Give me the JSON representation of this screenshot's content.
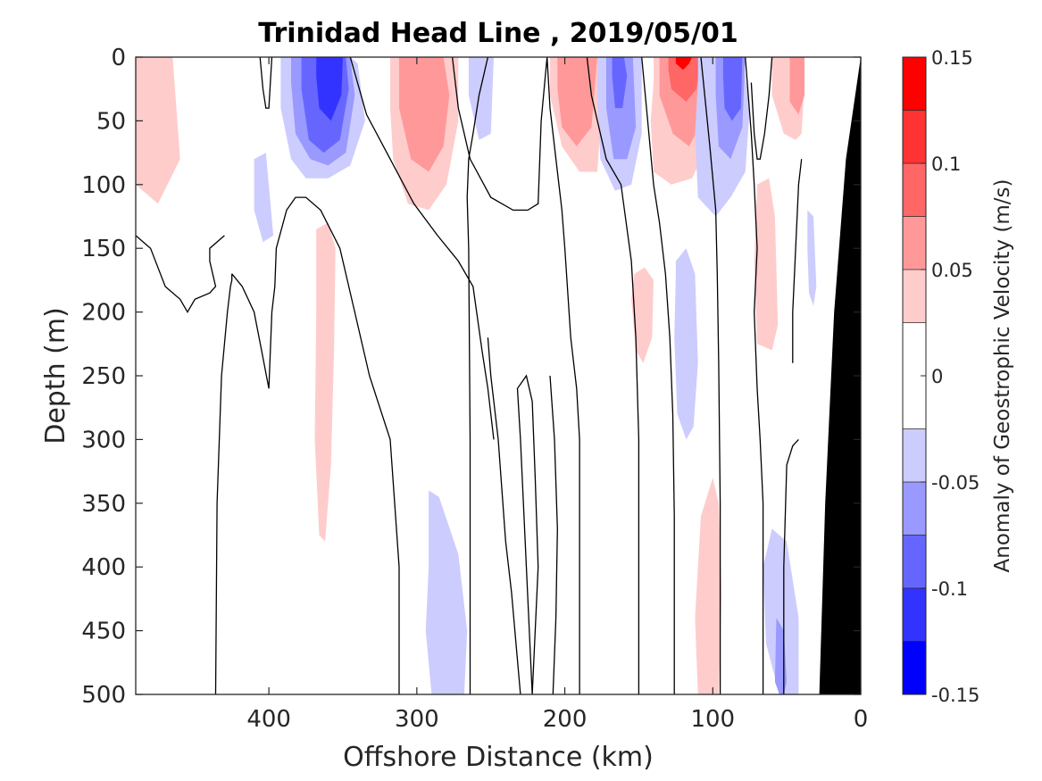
{
  "chart_data": {
    "type": "contour",
    "title": "Trinidad Head Line , 2019/05/01",
    "xlabel": "Offshore Distance (km)",
    "ylabel": "Depth (m)",
    "colorbar_label": "Anomaly of Geostrophic Velocity (m/s)",
    "xlim": [
      490,
      0
    ],
    "ylim": [
      0,
      500
    ],
    "x_reversed": true,
    "y_reversed": true,
    "x_ticks": [
      "400",
      "300",
      "200",
      "100",
      "0"
    ],
    "x_tick_values": [
      400,
      300,
      200,
      100,
      0
    ],
    "y_ticks": [
      "0",
      "50",
      "100",
      "150",
      "200",
      "250",
      "300",
      "350",
      "400",
      "450",
      "500"
    ],
    "y_tick_values": [
      0,
      50,
      100,
      150,
      200,
      250,
      300,
      350,
      400,
      450,
      500
    ],
    "colorbar": {
      "levels": [
        -0.15,
        -0.125,
        -0.1,
        -0.075,
        -0.05,
        -0.025,
        0.025,
        0.05,
        0.075,
        0.1,
        0.125,
        0.15
      ],
      "tick_labels": [
        "-0.15",
        "-0.1",
        "-0.05",
        "0",
        "0.05",
        "0.1",
        "0.15"
      ],
      "tick_values": [
        -0.15,
        -0.1,
        -0.05,
        0,
        0.05,
        0.1,
        0.15
      ],
      "colors": [
        "#0000ff",
        "#3333ff",
        "#6666ff",
        "#9999ff",
        "#ccccff",
        "#ffffff",
        "#ffcccc",
        "#ff9999",
        "#ff6666",
        "#ff3333",
        "#ff0000"
      ]
    },
    "colors": {
      "bathymetry": "#000000",
      "contour_line": "#000000"
    },
    "regions": [
      {
        "x": [
          490,
          465,
          460,
          475,
          490
        ],
        "y": [
          0,
          0,
          80,
          115,
          100
        ],
        "value": 0.03
      },
      {
        "x": [
          410,
          402,
          397,
          404,
          410
        ],
        "y": [
          80,
          75,
          140,
          145,
          120
        ],
        "value": -0.03
      },
      {
        "x": [
          392,
          380,
          370,
          355,
          345,
          340,
          335,
          345,
          360,
          375,
          385,
          392
        ],
        "y": [
          0,
          0,
          0,
          0,
          0,
          5,
          50,
          85,
          95,
          95,
          80,
          40
        ],
        "value": -0.03
      },
      {
        "x": [
          385,
          375,
          365,
          355,
          345,
          342,
          348,
          360,
          372,
          382,
          385
        ],
        "y": [
          0,
          0,
          0,
          0,
          0,
          30,
          75,
          85,
          80,
          60,
          20
        ],
        "value": -0.06
      },
      {
        "x": [
          378,
          368,
          358,
          348,
          346,
          352,
          363,
          373,
          378
        ],
        "y": [
          0,
          0,
          0,
          0,
          25,
          65,
          75,
          65,
          25
        ],
        "value": -0.08
      },
      {
        "x": [
          368,
          358,
          350,
          351,
          358,
          366,
          368
        ],
        "y": [
          0,
          0,
          0,
          30,
          50,
          40,
          15
        ],
        "value": -0.105
      },
      {
        "x": [
          368,
          360,
          355,
          356,
          358,
          362,
          366,
          369,
          368
        ],
        "y": [
          135,
          130,
          150,
          230,
          320,
          380,
          375,
          300,
          200
        ],
        "value": 0.03
      },
      {
        "x": [
          318,
          305,
          295,
          280,
          272,
          272,
          280,
          292,
          306,
          316,
          318
        ],
        "y": [
          0,
          0,
          0,
          0,
          0,
          50,
          100,
          120,
          115,
          80,
          40
        ],
        "value": 0.03
      },
      {
        "x": [
          312,
          300,
          290,
          282,
          278,
          282,
          292,
          304,
          312
        ],
        "y": [
          0,
          0,
          0,
          0,
          30,
          70,
          90,
          80,
          40
        ],
        "value": 0.06
      },
      {
        "x": [
          265,
          255,
          248,
          250,
          258,
          265
        ],
        "y": [
          0,
          0,
          0,
          60,
          65,
          30
        ],
        "value": -0.03
      },
      {
        "x": [
          292,
          285,
          272,
          266,
          268,
          278,
          290,
          294,
          292
        ],
        "y": [
          340,
          345,
          390,
          450,
          500,
          500,
          500,
          450,
          400
        ],
        "value": -0.03
      },
      {
        "x": [
          210,
          200,
          190,
          178,
          175,
          178,
          190,
          202,
          210
        ],
        "y": [
          0,
          0,
          0,
          0,
          40,
          90,
          90,
          70,
          30
        ],
        "value": 0.03
      },
      {
        "x": [
          205,
          195,
          185,
          178,
          182,
          192,
          202,
          205
        ],
        "y": [
          0,
          0,
          0,
          0,
          55,
          70,
          55,
          25
        ],
        "value": 0.06
      },
      {
        "x": [
          178,
          165,
          155,
          148,
          148,
          155,
          166,
          176,
          178
        ],
        "y": [
          0,
          0,
          0,
          0,
          60,
          100,
          105,
          80,
          30
        ],
        "value": -0.03
      },
      {
        "x": [
          172,
          162,
          154,
          152,
          158,
          167,
          172
        ],
        "y": [
          0,
          0,
          0,
          55,
          80,
          80,
          40
        ],
        "value": -0.06
      },
      {
        "x": [
          168,
          160,
          158,
          161,
          166,
          168
        ],
        "y": [
          0,
          0,
          15,
          40,
          40,
          15
        ],
        "value": -0.09
      },
      {
        "x": [
          140,
          128,
          118,
          106,
          100,
          104,
          114,
          128,
          140,
          142,
          140
        ],
        "y": [
          0,
          0,
          0,
          0,
          30,
          70,
          95,
          100,
          90,
          50,
          20
        ],
        "value": 0.03
      },
      {
        "x": [
          136,
          125,
          115,
          106,
          107,
          116,
          127,
          136
        ],
        "y": [
          0,
          0,
          0,
          0,
          50,
          70,
          60,
          30
        ],
        "value": 0.06
      },
      {
        "x": [
          130,
          122,
          113,
          108,
          111,
          118,
          128,
          130
        ],
        "y": [
          0,
          0,
          0,
          0,
          25,
          35,
          25,
          10
        ],
        "value": 0.09
      },
      {
        "x": [
          125,
          120,
          114,
          116,
          120,
          125
        ],
        "y": [
          0,
          0,
          0,
          5,
          10,
          5
        ],
        "value": 0.13
      },
      {
        "x": [
          153,
          146,
          140,
          141,
          147,
          152,
          155,
          153
        ],
        "y": [
          170,
          165,
          175,
          220,
          240,
          230,
          190,
          170
        ],
        "value": 0.03
      },
      {
        "x": [
          110,
          100,
          90,
          80,
          75,
          78,
          88,
          98,
          110,
          112,
          110
        ],
        "y": [
          0,
          0,
          0,
          0,
          40,
          90,
          110,
          125,
          110,
          60,
          20
        ],
        "value": -0.03
      },
      {
        "x": [
          98,
          90,
          82,
          78,
          80,
          88,
          96,
          98
        ],
        "y": [
          0,
          0,
          0,
          0,
          55,
          80,
          70,
          30
        ],
        "value": -0.06
      },
      {
        "x": [
          93,
          86,
          80,
          81,
          87,
          92,
          93
        ],
        "y": [
          0,
          0,
          0,
          40,
          50,
          40,
          15
        ],
        "value": -0.09
      },
      {
        "x": [
          125,
          118,
          112,
          110,
          113,
          118,
          124,
          126,
          125
        ],
        "y": [
          160,
          150,
          170,
          240,
          290,
          300,
          280,
          220,
          170
        ],
        "value": -0.03
      },
      {
        "x": [
          100,
          96,
          94,
          96,
          102,
          110,
          112,
          108,
          100
        ],
        "y": [
          330,
          350,
          420,
          500,
          500,
          500,
          440,
          360,
          330
        ],
        "value": 0.03
      },
      {
        "x": [
          70,
          62,
          58,
          56,
          60,
          70,
          72,
          70
        ],
        "y": [
          100,
          95,
          125,
          210,
          230,
          225,
          160,
          100
        ],
        "value": 0.03
      },
      {
        "x": [
          60,
          52,
          45,
          40,
          38,
          40,
          44,
          52,
          60
        ],
        "y": [
          0,
          0,
          0,
          0,
          20,
          60,
          65,
          60,
          30
        ],
        "value": 0.03
      },
      {
        "x": [
          48,
          42,
          38,
          38,
          42,
          48
        ],
        "y": [
          0,
          0,
          0,
          30,
          45,
          35
        ],
        "value": 0.06
      },
      {
        "x": [
          36,
          32,
          30,
          32,
          35,
          36
        ],
        "y": [
          120,
          125,
          180,
          195,
          185,
          150
        ],
        "value": -0.03
      },
      {
        "x": [
          60,
          50,
          42,
          42,
          45,
          55,
          64,
          66,
          60
        ],
        "y": [
          370,
          380,
          440,
          500,
          500,
          500,
          460,
          400,
          370
        ],
        "value": -0.03
      },
      {
        "x": [
          57,
          52,
          50,
          52,
          55,
          58,
          57
        ],
        "y": [
          440,
          450,
          490,
          500,
          500,
          490,
          440
        ],
        "value": -0.06
      }
    ],
    "zero_contours": [
      {
        "x": [
          490,
          480,
          470,
          460,
          455,
          450,
          440,
          436,
          440,
          440,
          430
        ],
        "y": [
          140,
          150,
          180,
          190,
          200,
          190,
          185,
          180,
          160,
          150,
          140
        ]
      },
      {
        "x": [
          436,
          435,
          432,
          428,
          426,
          425,
          425
        ],
        "y": [
          500,
          350,
          250,
          200,
          180,
          175,
          170
        ]
      },
      {
        "x": [
          425,
          418,
          410,
          405,
          400,
          398,
          396,
          395,
          388,
          382,
          375,
          365,
          352,
          342,
          332,
          318,
          312,
          312
        ],
        "y": [
          170,
          180,
          200,
          230,
          260,
          200,
          180,
          150,
          120,
          110,
          110,
          120,
          150,
          200,
          250,
          300,
          400,
          500
        ]
      },
      {
        "x": [
          406,
          404,
          402,
          400,
          398
        ],
        "y": [
          0,
          25,
          40,
          40,
          0
        ]
      },
      {
        "x": [
          252,
          258,
          262,
          265,
          266,
          265,
          264,
          264
        ],
        "y": [
          0,
          30,
          60,
          80,
          110,
          150,
          300,
          500
        ]
      },
      {
        "x": [
          345,
          334,
          318,
          302,
          286,
          272,
          262,
          256,
          252,
          248
        ],
        "y": [
          0,
          45,
          80,
          115,
          140,
          160,
          180,
          230,
          260,
          300
        ]
      },
      {
        "x": [
          276,
          272,
          264,
          250,
          235,
          225,
          218,
          216,
          212,
          210,
          205,
          202,
          200,
          196,
          192,
          190,
          190
        ],
        "y": [
          0,
          40,
          80,
          110,
          120,
          120,
          115,
          50,
          0,
          40,
          90,
          120,
          150,
          220,
          260,
          300,
          500
        ]
      },
      {
        "x": [
          230,
          236,
          240,
          245,
          250,
          252
        ],
        "y": [
          500,
          420,
          380,
          300,
          250,
          220
        ]
      },
      {
        "x": [
          222,
          226,
          228,
          230,
          232,
          226,
          222,
          220,
          218,
          220,
          222
        ],
        "y": [
          500,
          400,
          350,
          300,
          260,
          250,
          270,
          330,
          400,
          450,
          500
        ]
      },
      {
        "x": [
          208,
          206,
          205,
          207,
          210
        ],
        "y": [
          500,
          440,
          370,
          300,
          250
        ]
      },
      {
        "x": [
          185,
          182,
          172,
          162,
          155,
          152,
          150,
          150
        ],
        "y": [
          0,
          30,
          80,
          100,
          160,
          220,
          300,
          500
        ]
      },
      {
        "x": [
          148,
          144,
          140,
          136,
          132,
          129,
          127,
          126,
          126
        ],
        "y": [
          0,
          50,
          100,
          130,
          170,
          220,
          280,
          360,
          500
        ]
      },
      {
        "x": [
          108,
          102,
          98,
          97,
          96,
          95,
          95
        ],
        "y": [
          0,
          70,
          120,
          170,
          240,
          350,
          500
        ]
      },
      {
        "x": [
          78,
          74,
          72,
          70,
          72,
          70,
          68,
          66,
          66
        ],
        "y": [
          0,
          60,
          100,
          150,
          200,
          260,
          300,
          350,
          500
        ]
      },
      {
        "x": [
          60,
          62,
          65,
          68,
          70,
          72,
          74
        ],
        "y": [
          0,
          30,
          60,
          80,
          80,
          60,
          20
        ]
      },
      {
        "x": [
          42,
          46,
          50,
          52,
          52
        ],
        "y": [
          300,
          305,
          320,
          400,
          500
        ]
      },
      {
        "x": [
          40,
          42,
          44,
          46,
          46
        ],
        "y": [
          80,
          100,
          150,
          200,
          240
        ]
      }
    ],
    "bathymetry": {
      "x": [
        0,
        10,
        18,
        24,
        28,
        0
      ],
      "y": [
        0,
        80,
        200,
        350,
        500,
        500
      ]
    }
  }
}
